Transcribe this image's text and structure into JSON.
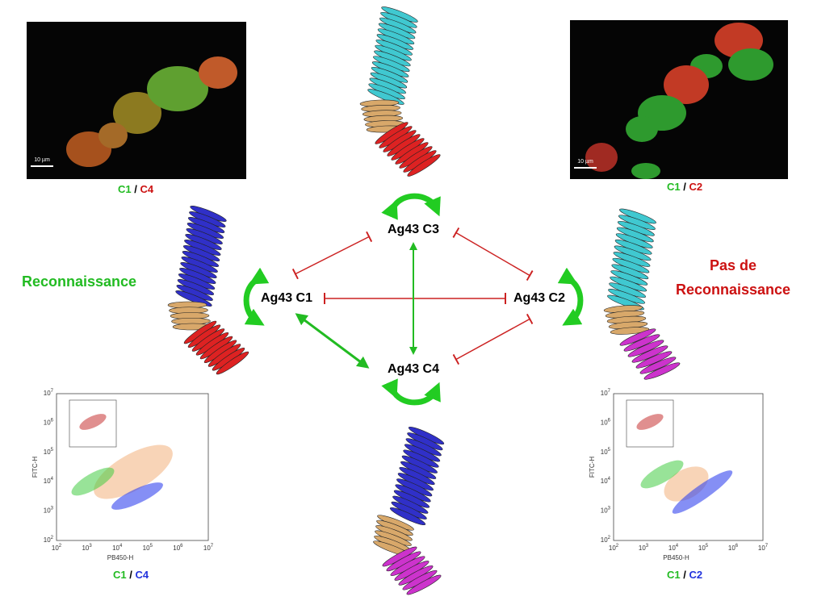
{
  "micrographs": [
    {
      "scale_bar": "10 µm",
      "caption": {
        "left": "C1",
        "sep": "/",
        "right": "C4"
      }
    },
    {
      "scale_bar": "10 µm",
      "caption": {
        "left": "C1",
        "sep": "/",
        "right": "C2"
      }
    }
  ],
  "nodes": [
    "Ag43 C1",
    "Ag43 C2",
    "Ag43 C3",
    "Ag43 C4"
  ],
  "recognition": "Reconnaissance",
  "no_recognition": [
    "Pas de",
    "Reconnaissance"
  ],
  "flow_plots": [
    {
      "y_label": "FITC-H",
      "x_label": "PB450-H",
      "caption": {
        "left": "C1",
        "sep": "/",
        "right": "C4"
      },
      "ticks": [
        {
          "base": "10",
          "exp": "2"
        },
        {
          "base": "10",
          "exp": "3"
        },
        {
          "base": "10",
          "exp": "4"
        },
        {
          "base": "10",
          "exp": "5"
        },
        {
          "base": "10",
          "exp": "6"
        },
        {
          "base": "10",
          "exp": "7"
        }
      ]
    },
    {
      "y_label": "FITC-H",
      "x_label": "PB450-H",
      "caption": {
        "left": "C1",
        "sep": "/",
        "right": "C2"
      },
      "ticks": [
        {
          "base": "10",
          "exp": "2"
        },
        {
          "base": "10",
          "exp": "3"
        },
        {
          "base": "10",
          "exp": "4"
        },
        {
          "base": "10",
          "exp": "5"
        },
        {
          "base": "10",
          "exp": "6"
        },
        {
          "base": "10",
          "exp": "7"
        }
      ]
    }
  ]
}
